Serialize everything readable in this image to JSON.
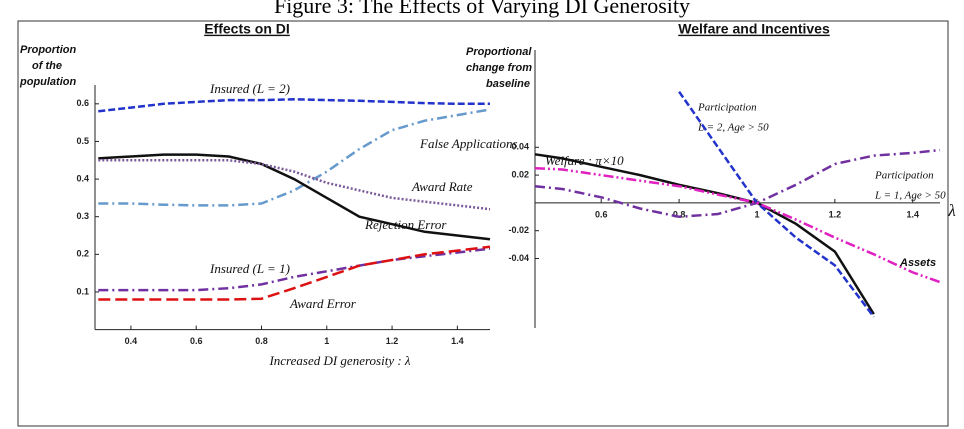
{
  "title": "Figure 3: The Effects of Varying DI Generosity",
  "chart_data": [
    {
      "type": "line",
      "title": "Effects on DI",
      "ylabel": [
        "Proportion",
        "of the",
        "population"
      ],
      "xlabel": "Increased DI generosity : λ",
      "xlim": [
        0.29,
        1.5
      ],
      "ylim": [
        0,
        0.65
      ],
      "xticks": [
        0.4,
        0.6,
        0.8,
        1,
        1.2,
        1.4
      ],
      "yticks": [
        0.1,
        0.2,
        0.3,
        0.4,
        0.5,
        0.6
      ],
      "x": [
        0.3,
        0.4,
        0.5,
        0.6,
        0.7,
        0.8,
        0.9,
        1.0,
        1.1,
        1.2,
        1.3,
        1.4,
        1.5
      ],
      "series": [
        {
          "name": "Insured (L = 2)",
          "color": "#2233cc",
          "style": "dashed",
          "values": [
            0.58,
            0.59,
            0.6,
            0.605,
            0.61,
            0.61,
            0.612,
            0.61,
            0.608,
            0.605,
            0.602,
            0.6,
            0.6
          ]
        },
        {
          "name": "False Applications",
          "color": "#6699cc",
          "style": "dashdot",
          "values": [
            0.335,
            0.335,
            0.332,
            0.33,
            0.33,
            0.335,
            0.37,
            0.42,
            0.48,
            0.53,
            0.555,
            0.57,
            0.585
          ]
        },
        {
          "name": "Rejection Error",
          "color": "#111111",
          "style": "solid",
          "values": [
            0.455,
            0.46,
            0.465,
            0.465,
            0.46,
            0.44,
            0.4,
            0.35,
            0.3,
            0.28,
            0.26,
            0.25,
            0.24
          ]
        },
        {
          "name": "Award Rate",
          "color": "#7a5a9a",
          "style": "dotted",
          "values": [
            0.45,
            0.45,
            0.45,
            0.45,
            0.45,
            0.44,
            0.42,
            0.39,
            0.37,
            0.35,
            0.34,
            0.33,
            0.32
          ]
        },
        {
          "name": "Insured (L = 1)",
          "color": "#7030a0",
          "style": "dashdot",
          "values": [
            0.105,
            0.105,
            0.105,
            0.105,
            0.11,
            0.12,
            0.14,
            0.155,
            0.17,
            0.185,
            0.195,
            0.205,
            0.215
          ]
        },
        {
          "name": "Award Error",
          "color": "#dd1111",
          "style": "longdash",
          "values": [
            0.08,
            0.08,
            0.08,
            0.08,
            0.08,
            0.082,
            0.11,
            0.14,
            0.17,
            0.185,
            0.2,
            0.21,
            0.22
          ]
        }
      ]
    },
    {
      "type": "line",
      "title": "Welfare and Incentives",
      "ylabel": [
        "Proportional",
        "change from",
        "baseline"
      ],
      "xlabel": "λ",
      "xlim": [
        0.43,
        1.47
      ],
      "ylim": [
        -0.09,
        0.11
      ],
      "xticks": [
        0.6,
        0.8,
        1,
        1.2,
        1.4
      ],
      "yticks": [
        -0.04,
        -0.02,
        0.02,
        0.04
      ],
      "x": [
        0.43,
        0.5,
        0.6,
        0.7,
        0.8,
        0.9,
        1.0,
        1.1,
        1.2,
        1.3,
        1.4,
        1.47
      ],
      "series": [
        {
          "name": "Welfare : π×10",
          "color": "#111111",
          "style": "solid",
          "values": [
            0.035,
            0.032,
            0.026,
            0.02,
            0.013,
            0.007,
            0,
            -0.015,
            -0.035,
            -0.08,
            null,
            null
          ]
        },
        {
          "name": [
            "Participation",
            "L = 2, Age > 50"
          ],
          "color": "#2233cc",
          "style": "dashed",
          "values": [
            null,
            null,
            null,
            null,
            0.08,
            0.04,
            0,
            -0.025,
            -0.045,
            -0.082,
            null,
            null
          ]
        },
        {
          "name": [
            "Participation",
            "L = 1, Age > 50"
          ],
          "color": "#7030a0",
          "style": "dashdot",
          "values": [
            0.012,
            0.01,
            0.004,
            -0.004,
            -0.01,
            -0.008,
            0,
            0.013,
            0.028,
            0.034,
            0.036,
            0.038
          ]
        },
        {
          "name": "Assets",
          "color": "#e020c0",
          "style": "dashdotdot",
          "values": [
            0.025,
            0.024,
            0.02,
            0.016,
            0.012,
            0.006,
            0,
            -0.012,
            -0.025,
            -0.037,
            -0.05,
            -0.057
          ]
        }
      ]
    }
  ]
}
